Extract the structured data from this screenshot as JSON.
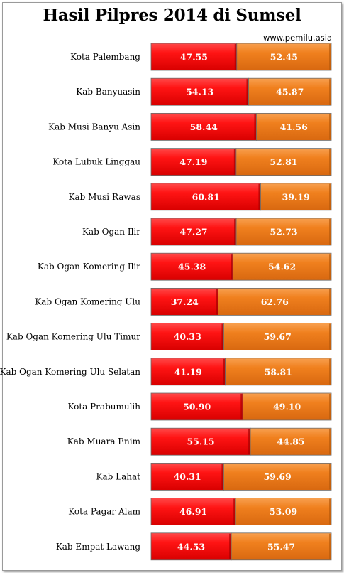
{
  "title": "Hasil Pilpres 2014 di Sumsel",
  "source": "www.pemilu.asia",
  "chart_data": {
    "type": "bar",
    "orientation": "horizontal",
    "stacked": true,
    "normalized_percent": true,
    "xlim": [
      0,
      100
    ],
    "grid": false,
    "legend": "none",
    "categories": [
      "Kota Palembang",
      "Kab Banyuasin",
      "Kab Musi Banyu Asin",
      "Kota Lubuk  Linggau",
      "Kab Musi Rawas",
      "Kab Ogan Ilir",
      "Kab Ogan Komering  Ilir",
      "Kab Ogan Komering  Ulu",
      "Kab Ogan Komering  Ulu Timur",
      "Kab Ogan Komering  Ulu Selatan",
      "Kota Prabumulih",
      "Kab Muara  Enim",
      "Kab Lahat",
      "Kota Pagar  Alam",
      "Kab Empat Lawang"
    ],
    "series": [
      {
        "color": "#ff1a1a",
        "values": [
          47.55,
          54.13,
          58.44,
          47.19,
          60.81,
          47.27,
          45.38,
          37.24,
          40.33,
          41.19,
          50.9,
          55.15,
          40.31,
          46.91,
          44.53
        ],
        "labels": [
          "47.55",
          "54.13",
          "58.44",
          "47.19",
          "60.81",
          "47.27",
          "45.38",
          "37.24",
          "40.33",
          "41.19",
          "50.90",
          "55.15",
          "40.31",
          "46.91",
          "44.53"
        ]
      },
      {
        "color": "#f07a1e",
        "values": [
          52.45,
          45.87,
          41.56,
          52.81,
          39.19,
          52.73,
          54.62,
          62.76,
          59.67,
          58.81,
          49.1,
          44.85,
          59.69,
          53.09,
          55.47
        ],
        "labels": [
          "52.45",
          "45.87",
          "41.56",
          "52.81",
          "39.19",
          "52.73",
          "54.62",
          "62.76",
          "59.67",
          "58.81",
          "49.10",
          "44.85",
          "59.69",
          "53.09",
          "55.47"
        ]
      }
    ]
  }
}
